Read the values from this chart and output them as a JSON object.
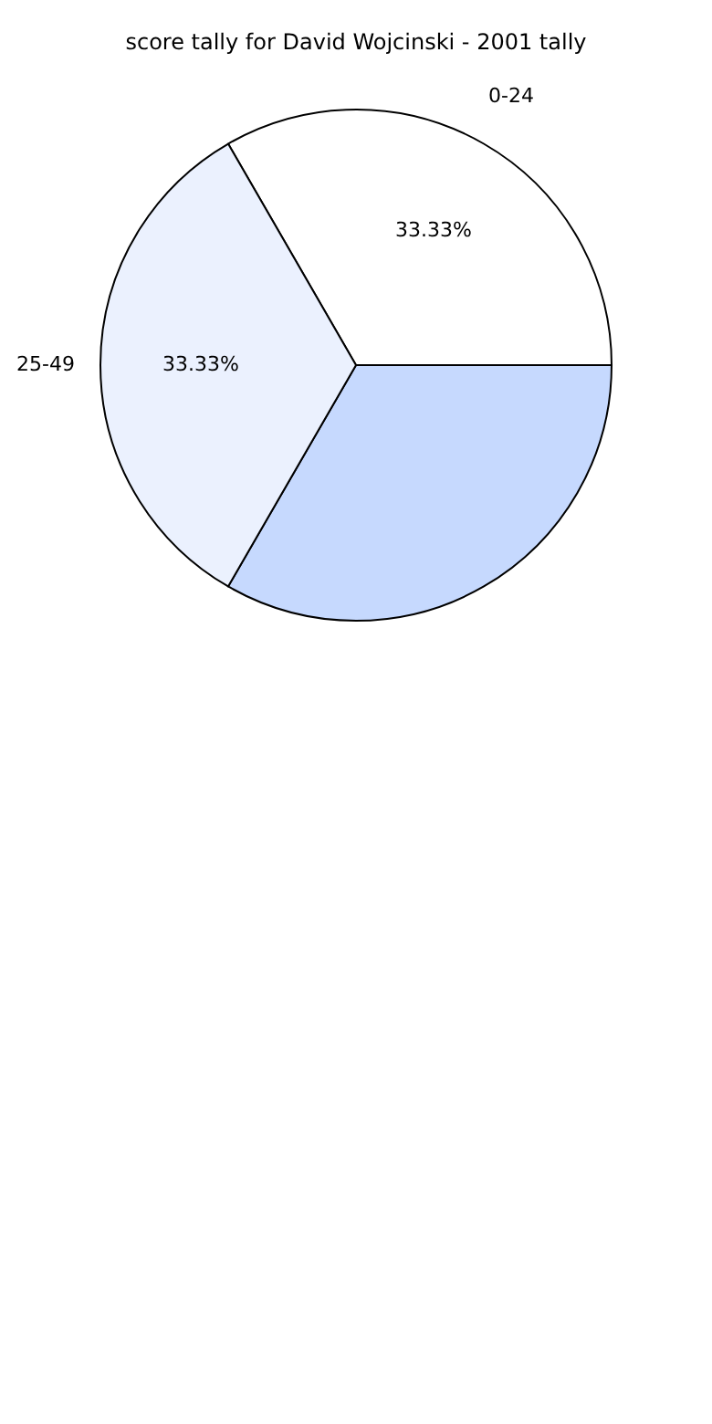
{
  "chart_data": {
    "type": "pie",
    "title": "score tally for David Wojcinski - 2001 tally",
    "categories": [
      "0-24",
      null,
      "25-49"
    ],
    "values": [
      33.33,
      33.34,
      33.33
    ],
    "value_labels": [
      "33.33%",
      null,
      "33.33%"
    ],
    "colors": [
      "#ffffff",
      "#c6d9fe",
      "#ebf1fe"
    ]
  }
}
